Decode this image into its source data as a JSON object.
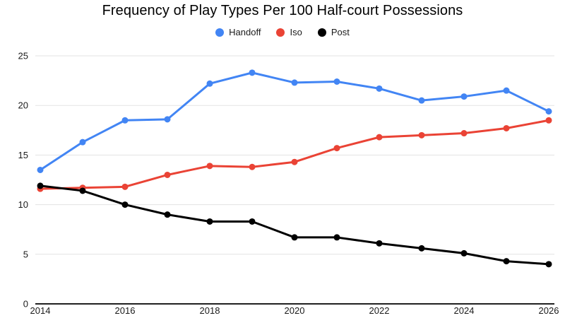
{
  "chart_data": {
    "type": "line",
    "title": "Frequency of Play Types Per 100 Half-court Possessions",
    "xlabel": "",
    "ylabel": "",
    "x": [
      2014,
      2015,
      2016,
      2017,
      2018,
      2019,
      2020,
      2021,
      2022,
      2023,
      2024,
      2025,
      2026
    ],
    "xticks": [
      2014,
      2016,
      2018,
      2020,
      2022,
      2024,
      2026
    ],
    "yticks": [
      0,
      5,
      10,
      15,
      20,
      25
    ],
    "ylim": [
      0,
      25
    ],
    "grid": true,
    "legend_position": "top-center",
    "series": [
      {
        "name": "Handoff",
        "color": "#4285f4",
        "values": [
          13.5,
          16.3,
          18.5,
          18.6,
          22.2,
          23.3,
          22.3,
          22.4,
          21.7,
          20.5,
          20.9,
          21.5,
          19.4
        ]
      },
      {
        "name": "Iso",
        "color": "#ea4335",
        "values": [
          11.6,
          11.7,
          11.8,
          13.0,
          13.9,
          13.8,
          14.3,
          15.7,
          16.8,
          17.0,
          17.2,
          17.7,
          18.5
        ]
      },
      {
        "name": "Post",
        "color": "#000000",
        "values": [
          11.9,
          11.4,
          10.0,
          9.0,
          8.3,
          8.3,
          6.7,
          6.7,
          6.1,
          5.6,
          5.1,
          4.3,
          4.0
        ]
      }
    ],
    "style": {
      "grid_color": "#e3e3e3",
      "axis_line_color": "#212121",
      "tick_label_color": "#1a1a1a",
      "background": "#ffffff"
    }
  }
}
